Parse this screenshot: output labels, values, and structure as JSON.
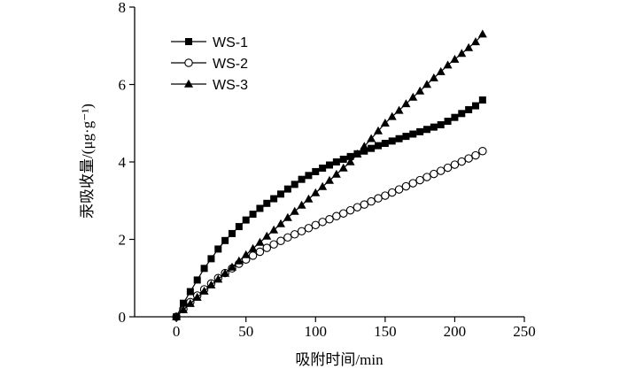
{
  "chart_data": {
    "type": "line",
    "title": "",
    "xlabel": "吸附时间/min",
    "ylabel": "汞吸收量/(μg·g⁻¹)",
    "xlim": [
      -30,
      250
    ],
    "ylim": [
      0,
      8
    ],
    "x_ticks": [
      0,
      50,
      100,
      150,
      200,
      250
    ],
    "y_ticks": [
      0,
      2,
      4,
      6,
      8
    ],
    "grid": false,
    "legend": "top-left",
    "x": [
      0,
      5,
      10,
      15,
      20,
      25,
      30,
      35,
      40,
      45,
      50,
      55,
      60,
      65,
      70,
      75,
      80,
      85,
      90,
      95,
      100,
      105,
      110,
      115,
      120,
      125,
      130,
      135,
      140,
      145,
      150,
      155,
      160,
      165,
      170,
      175,
      180,
      185,
      190,
      195,
      200,
      205,
      210,
      215,
      220
    ],
    "series": [
      {
        "name": "WS-1",
        "marker": "filled-square",
        "values": [
          0,
          0.35,
          0.65,
          0.95,
          1.25,
          1.5,
          1.75,
          1.97,
          2.15,
          2.33,
          2.5,
          2.65,
          2.8,
          2.93,
          3.05,
          3.17,
          3.3,
          3.42,
          3.55,
          3.65,
          3.75,
          3.84,
          3.92,
          4.0,
          4.07,
          4.14,
          4.21,
          4.28,
          4.35,
          4.42,
          4.48,
          4.54,
          4.6,
          4.66,
          4.72,
          4.78,
          4.84,
          4.9,
          4.96,
          5.05,
          5.15,
          5.25,
          5.35,
          5.45,
          5.6
        ]
      },
      {
        "name": "WS-2",
        "marker": "open-circle",
        "values": [
          0,
          0.2,
          0.38,
          0.55,
          0.71,
          0.86,
          1.0,
          1.13,
          1.25,
          1.37,
          1.48,
          1.58,
          1.68,
          1.78,
          1.87,
          1.96,
          2.05,
          2.13,
          2.21,
          2.29,
          2.37,
          2.45,
          2.52,
          2.6,
          2.67,
          2.75,
          2.83,
          2.9,
          2.98,
          3.06,
          3.13,
          3.21,
          3.29,
          3.37,
          3.45,
          3.53,
          3.61,
          3.69,
          3.77,
          3.85,
          3.93,
          4.01,
          4.09,
          4.17,
          4.28
        ]
      },
      {
        "name": "WS-3",
        "marker": "filled-triangle",
        "values": [
          0,
          0.18,
          0.34,
          0.5,
          0.66,
          0.82,
          0.97,
          1.12,
          1.28,
          1.44,
          1.6,
          1.76,
          1.92,
          2.08,
          2.24,
          2.4,
          2.56,
          2.72,
          2.88,
          3.04,
          3.2,
          3.36,
          3.52,
          3.68,
          3.84,
          4.0,
          4.2,
          4.4,
          4.6,
          4.8,
          5.0,
          5.17,
          5.33,
          5.5,
          5.67,
          5.83,
          6.0,
          6.17,
          6.33,
          6.5,
          6.65,
          6.8,
          6.95,
          7.1,
          7.3
        ]
      }
    ]
  }
}
